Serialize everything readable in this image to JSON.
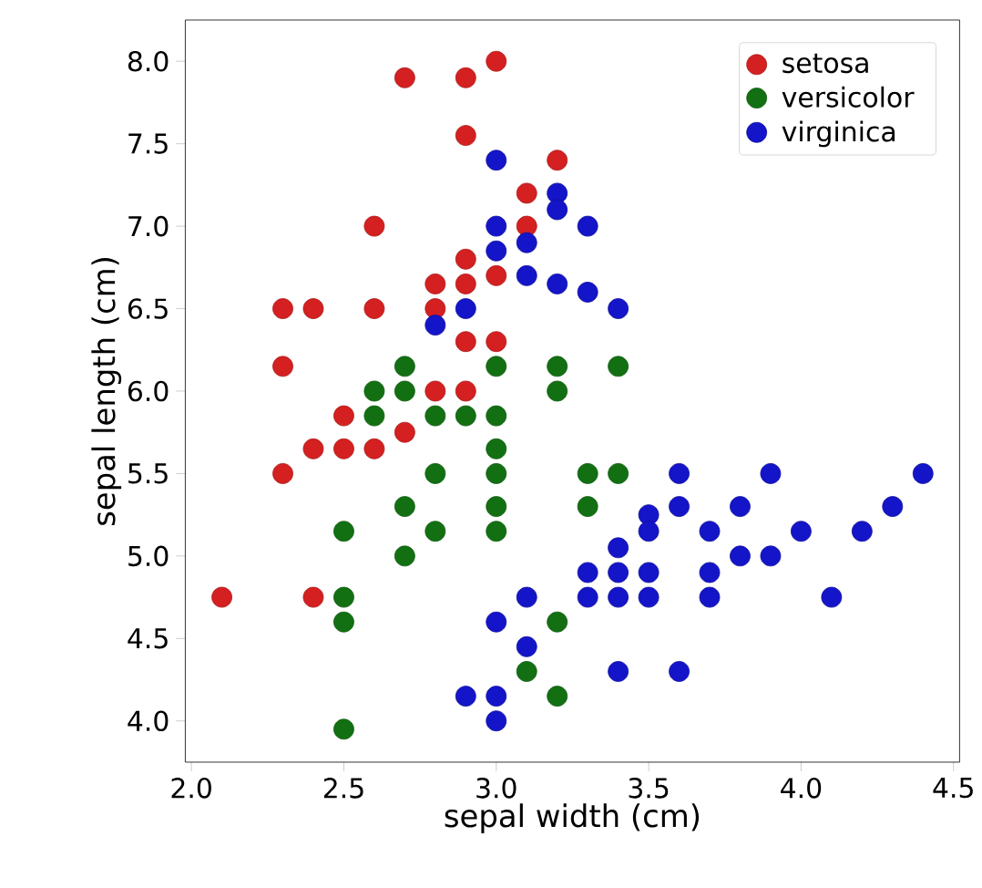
{
  "chart_data": {
    "type": "scatter",
    "xlabel": "sepal width (cm)",
    "ylabel": "sepal length (cm)",
    "xlim": [
      1.98,
      4.52
    ],
    "ylim": [
      3.75,
      8.25
    ],
    "xticks": [
      {
        "value": 2,
        "label": "2.0"
      },
      {
        "value": 2.5,
        "label": "2.5"
      },
      {
        "value": 3,
        "label": "3.0"
      },
      {
        "value": 3.5,
        "label": "3.5"
      },
      {
        "value": 4,
        "label": "4.0"
      },
      {
        "value": 4.5,
        "label": "4.5"
      }
    ],
    "yticks": [
      {
        "value": 4,
        "label": "4.0"
      },
      {
        "value": 4.5,
        "label": "4.5"
      },
      {
        "value": 5,
        "label": "5.0"
      },
      {
        "value": 5.5,
        "label": "5.5"
      },
      {
        "value": 6,
        "label": "6.0"
      },
      {
        "value": 6.5,
        "label": "6.5"
      },
      {
        "value": 7,
        "label": "7.0"
      },
      {
        "value": 7.5,
        "label": "7.5"
      },
      {
        "value": 8,
        "label": "8.0"
      }
    ],
    "legend": "top right",
    "grid": false,
    "series": [
      {
        "name": "setosa",
        "color": "#d42020",
        "x": [
          3.0,
          2.7,
          2.9,
          2.9,
          3.2,
          3.1,
          3.1,
          2.6,
          2.9,
          2.8,
          2.9,
          3.0,
          2.3,
          2.4,
          2.6,
          2.8,
          2.9,
          3.0,
          2.3,
          2.8,
          2.9,
          2.5,
          2.7,
          2.4,
          2.5,
          2.6,
          2.3,
          2.1,
          2.4
        ],
        "values": [
          8.0,
          7.9,
          7.9,
          7.55,
          7.4,
          7.2,
          7.0,
          7.0,
          6.8,
          6.65,
          6.65,
          6.7,
          6.5,
          6.5,
          6.5,
          6.5,
          6.3,
          6.3,
          6.15,
          6.0,
          6.0,
          5.85,
          5.75,
          5.65,
          5.65,
          5.65,
          5.5,
          4.75,
          4.75
        ]
      },
      {
        "name": "versicolor",
        "color": "#127012",
        "x": [
          2.7,
          3.0,
          3.2,
          3.4,
          2.6,
          2.7,
          3.2,
          2.6,
          2.8,
          2.9,
          3.0,
          3.0,
          2.8,
          3.0,
          3.3,
          3.4,
          2.7,
          3.0,
          3.3,
          2.5,
          2.8,
          3.0,
          2.7,
          2.5,
          2.5,
          3.2,
          3.1,
          3.2,
          2.5
        ],
        "values": [
          6.15,
          6.15,
          6.15,
          6.15,
          6.0,
          6.0,
          6.0,
          5.85,
          5.85,
          5.85,
          5.85,
          5.65,
          5.5,
          5.5,
          5.5,
          5.5,
          5.3,
          5.3,
          5.3,
          5.15,
          5.15,
          5.15,
          5.0,
          4.75,
          4.6,
          4.6,
          4.3,
          4.15,
          3.95
        ]
      },
      {
        "name": "virginica",
        "color": "#1414c8",
        "x": [
          3.0,
          3.2,
          3.2,
          3.0,
          3.3,
          3.0,
          3.1,
          3.1,
          3.2,
          3.3,
          3.4,
          2.9,
          2.8,
          3.6,
          3.9,
          4.4,
          3.6,
          3.8,
          4.3,
          3.5,
          3.5,
          3.7,
          4.0,
          4.2,
          3.4,
          3.8,
          3.9,
          3.3,
          3.4,
          3.5,
          3.7,
          3.1,
          3.3,
          3.4,
          3.5,
          3.7,
          4.1,
          3.0,
          3.1,
          3.4,
          3.6,
          2.9,
          3.0,
          3.0
        ],
        "values": [
          7.4,
          7.2,
          7.1,
          7.0,
          7.0,
          6.85,
          6.9,
          6.7,
          6.65,
          6.6,
          6.5,
          6.5,
          6.4,
          5.5,
          5.5,
          5.5,
          5.3,
          5.3,
          5.3,
          5.25,
          5.15,
          5.15,
          5.15,
          5.15,
          5.05,
          5.0,
          5.0,
          4.9,
          4.9,
          4.9,
          4.9,
          4.75,
          4.75,
          4.75,
          4.75,
          4.75,
          4.75,
          4.6,
          4.45,
          4.3,
          4.3,
          4.15,
          4.15,
          4.0
        ]
      }
    ]
  }
}
